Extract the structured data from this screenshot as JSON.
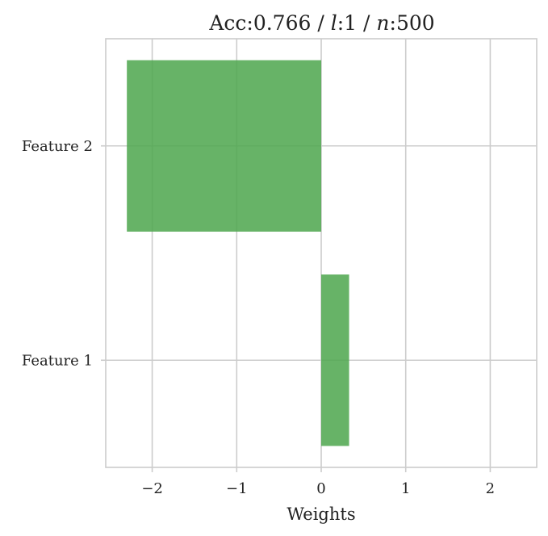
{
  "chart_data": {
    "type": "bar",
    "orientation": "horizontal",
    "title": "Acc:0.766 / l:1 / n:500",
    "title_parts": {
      "acc": "Acc:0.766",
      "sep1": " / ",
      "l_var": "l",
      "l_val": ":1",
      "sep2": " / ",
      "n_var": "n",
      "n_val": ":500"
    },
    "categories": [
      "Feature 1",
      "Feature 2"
    ],
    "series": [
      {
        "values": [
          0.33,
          -2.3
        ],
        "color": "#4ca64c"
      }
    ],
    "xlabel": "Weights",
    "ylabel": "",
    "xlim": [
      -2.55,
      2.55
    ],
    "xticks": [
      -2,
      -1,
      0,
      1,
      2
    ],
    "xtick_labels": [
      "−2",
      "−1",
      "0",
      "1",
      "2"
    ],
    "grid": true,
    "legend": "none"
  }
}
